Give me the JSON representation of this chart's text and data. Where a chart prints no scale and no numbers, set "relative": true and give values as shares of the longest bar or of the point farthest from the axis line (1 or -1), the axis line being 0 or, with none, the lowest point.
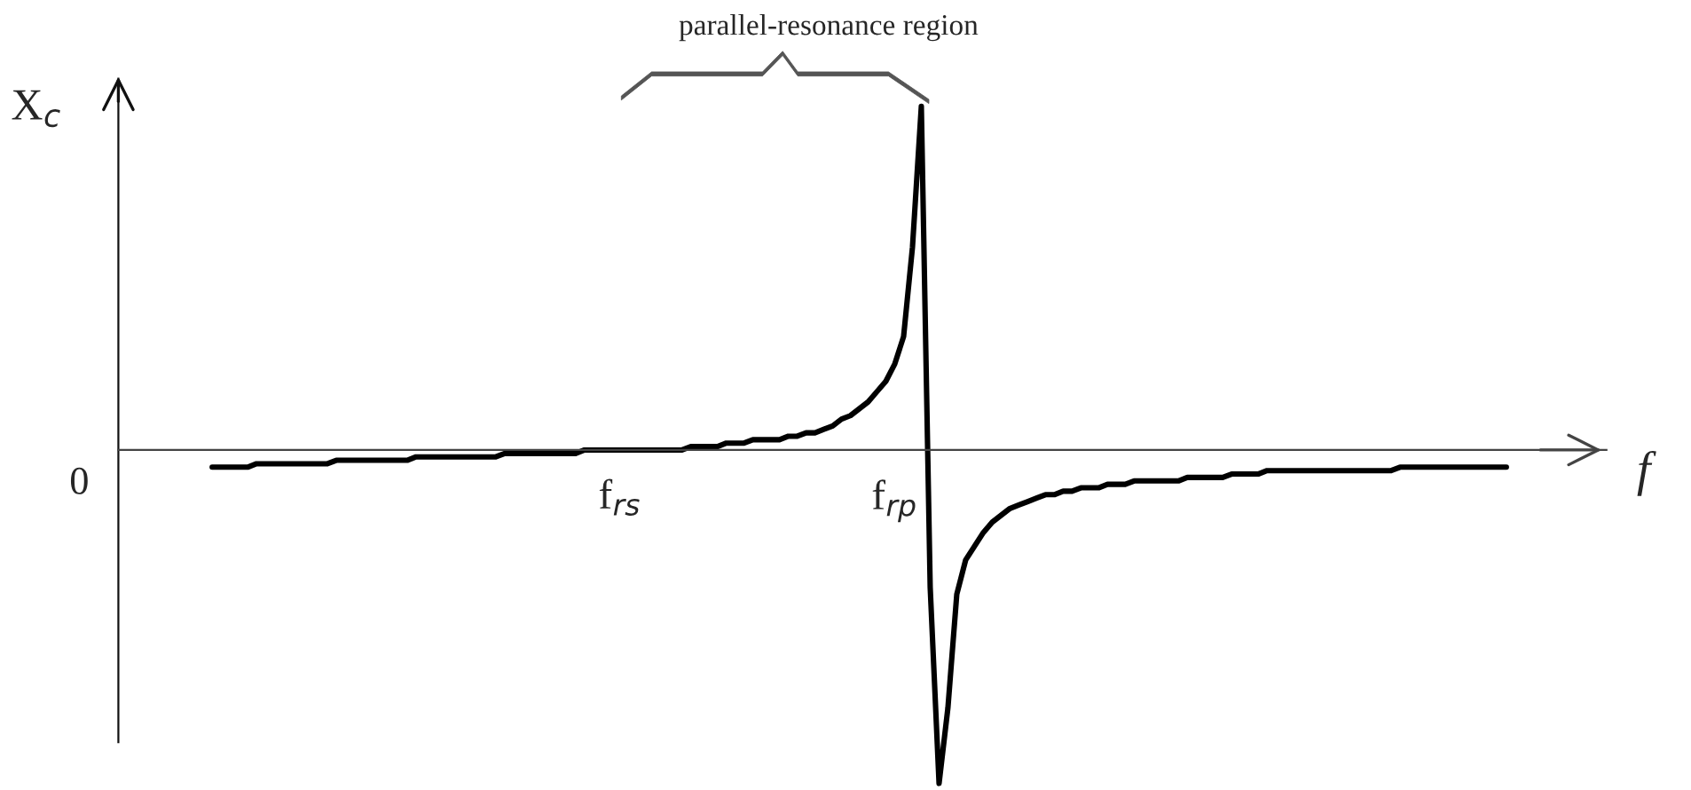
{
  "chart_data": {
    "type": "line",
    "relative": true,
    "xlabel": "f",
    "ylabel": "X$_{c}$",
    "annotations": [
      "parallel-resonance region",
      "0"
    ],
    "categories": [
      null,
      null,
      null,
      null,
      null,
      null,
      null,
      null,
      null,
      null,
      null,
      null,
      null,
      null,
      null,
      null,
      null,
      null,
      null,
      null,
      null,
      null,
      null,
      null,
      null,
      null,
      null,
      null,
      null,
      null,
      null,
      null,
      null,
      null,
      null,
      null,
      null,
      null,
      null,
      null,
      null,
      null,
      null,
      null,
      null,
      null,
      "f$_{rs}$",
      null,
      null,
      null,
      null,
      null,
      null,
      null,
      null,
      null,
      null,
      null,
      null,
      null,
      null,
      null,
      null,
      null,
      null,
      null,
      null,
      null,
      null,
      null,
      null,
      null,
      null,
      null,
      null,
      null,
      null,
      "f$_{rp}$",
      null,
      null,
      null,
      null,
      null,
      null,
      null,
      null,
      null,
      null,
      null,
      null,
      null,
      null,
      null,
      null,
      null,
      null,
      null,
      null,
      null,
      null,
      null,
      null,
      null,
      null,
      null,
      null,
      null,
      null,
      null,
      null,
      null,
      null,
      null,
      null,
      null,
      null,
      null,
      null,
      null,
      null,
      null,
      null,
      null,
      null,
      null,
      null,
      null,
      null,
      null,
      null,
      null,
      null,
      null,
      null,
      null,
      null,
      null,
      null,
      null,
      null,
      null,
      null,
      null,
      null,
      null,
      null,
      null
    ],
    "series": [
      {
        "color": "#000000",
        "values": [
          -0.05,
          -0.05,
          -0.05,
          -0.05,
          -0.05,
          -0.04,
          -0.04,
          -0.04,
          -0.04,
          -0.04,
          -0.04,
          -0.04,
          -0.04,
          -0.04,
          -0.03,
          -0.03,
          -0.03,
          -0.03,
          -0.03,
          -0.03,
          -0.03,
          -0.03,
          -0.03,
          -0.02,
          -0.02,
          -0.02,
          -0.02,
          -0.02,
          -0.02,
          -0.02,
          -0.02,
          -0.02,
          -0.02,
          -0.01,
          -0.01,
          -0.01,
          -0.01,
          -0.01,
          -0.01,
          -0.01,
          -0.01,
          -0.01,
          0.0,
          0.0,
          0.0,
          0.0,
          0.0,
          0.0,
          0.0,
          0.0,
          0.0,
          0.0,
          0.0,
          0.0,
          0.01,
          0.01,
          0.01,
          0.01,
          0.02,
          0.02,
          0.02,
          0.03,
          0.03,
          0.03,
          0.03,
          0.04,
          0.04,
          0.05,
          0.05,
          0.06,
          0.07,
          0.09,
          0.1,
          0.12,
          0.14,
          0.17,
          0.2,
          0.25,
          0.33,
          0.59,
          1.0,
          -0.4,
          -0.97,
          -0.75,
          -0.42,
          -0.32,
          -0.28,
          -0.24,
          -0.21,
          -0.19,
          -0.17,
          -0.16,
          -0.15,
          -0.14,
          -0.13,
          -0.13,
          -0.12,
          -0.12,
          -0.11,
          -0.11,
          -0.11,
          -0.1,
          -0.1,
          -0.1,
          -0.09,
          -0.09,
          -0.09,
          -0.09,
          -0.09,
          -0.09,
          -0.08,
          -0.08,
          -0.08,
          -0.08,
          -0.08,
          -0.07,
          -0.07,
          -0.07,
          -0.07,
          -0.06,
          -0.06,
          -0.06,
          -0.06,
          -0.06,
          -0.06,
          -0.06,
          -0.06,
          -0.06,
          -0.06,
          -0.06,
          -0.06,
          -0.06,
          -0.06,
          -0.06,
          -0.05,
          -0.05,
          -0.05,
          -0.05,
          -0.05,
          -0.05,
          -0.05,
          -0.05,
          -0.05,
          -0.05,
          -0.05,
          -0.05,
          -0.05
        ]
      }
    ]
  }
}
